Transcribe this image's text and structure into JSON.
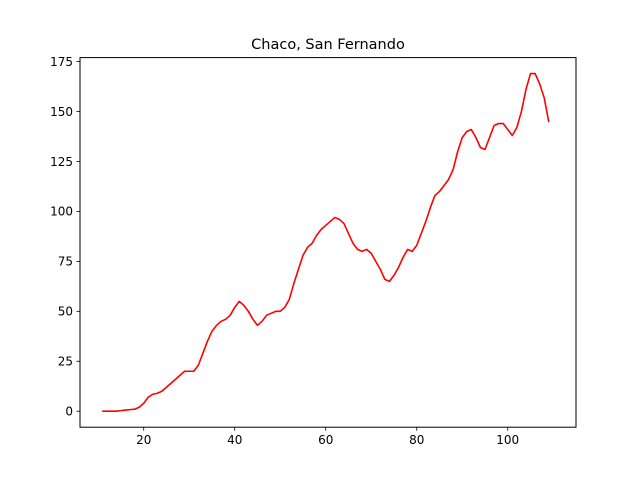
{
  "chart_data": {
    "type": "line",
    "title": "Chaco, San Fernando",
    "xlabel": "",
    "ylabel": "",
    "xlim": [
      6,
      115
    ],
    "ylim": [
      -8,
      177
    ],
    "xticks": [
      20,
      40,
      60,
      80,
      100
    ],
    "yticks": [
      0,
      25,
      50,
      75,
      100,
      125,
      150,
      175
    ],
    "grid": false,
    "legend": "none",
    "series": [
      {
        "color": "#ff0000",
        "x": [
          11,
          12,
          13,
          14,
          15,
          16,
          17,
          18,
          19,
          20,
          21,
          22,
          23,
          24,
          25,
          26,
          27,
          28,
          29,
          30,
          31,
          32,
          33,
          34,
          35,
          36,
          37,
          38,
          39,
          40,
          41,
          42,
          43,
          44,
          45,
          46,
          47,
          48,
          49,
          50,
          51,
          52,
          53,
          54,
          55,
          56,
          57,
          58,
          59,
          60,
          61,
          62,
          63,
          64,
          65,
          66,
          67,
          68,
          69,
          70,
          71,
          72,
          73,
          74,
          75,
          76,
          77,
          78,
          79,
          80,
          81,
          82,
          83,
          84,
          85,
          86,
          87,
          88,
          89,
          90,
          91,
          92,
          93,
          94,
          95,
          96,
          97,
          98,
          99,
          100,
          101,
          102,
          103,
          104,
          105,
          106,
          107,
          108,
          109
        ],
        "y": [
          0,
          0,
          0,
          0,
          0.3,
          0.6,
          0.8,
          1,
          2,
          4,
          7,
          8.5,
          9,
          10,
          12,
          14,
          16,
          18,
          20,
          20,
          20,
          23,
          29,
          35,
          40,
          43,
          45,
          46,
          48,
          52,
          55,
          53,
          50,
          46,
          43,
          45,
          48,
          49,
          50,
          50,
          52,
          56,
          64,
          71,
          78,
          82,
          84,
          88,
          91,
          93,
          95,
          97,
          96,
          94,
          89,
          84,
          81,
          80,
          81,
          79,
          75,
          71,
          66,
          65,
          68,
          72,
          77,
          81,
          80,
          83,
          89,
          95,
          102,
          108,
          110,
          113,
          116,
          121,
          130,
          137,
          140,
          141,
          137,
          132,
          131,
          137,
          143,
          144,
          144,
          141,
          138,
          142,
          150,
          161,
          169,
          169,
          164,
          157,
          145
        ]
      }
    ]
  }
}
